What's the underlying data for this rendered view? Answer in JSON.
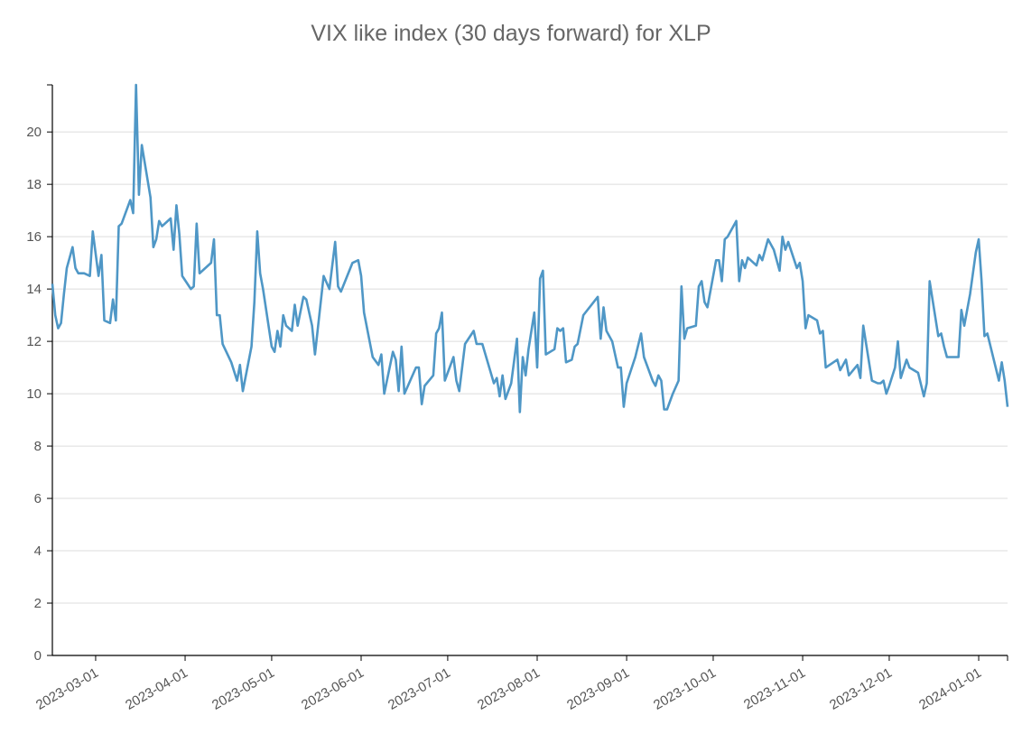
{
  "chart_data": {
    "type": "line",
    "title": "VIX like index (30 days forward) for XLP",
    "x": [
      "2023-02-14",
      "2023-02-15",
      "2023-02-16",
      "2023-02-17",
      "2023-02-18",
      "2023-02-19",
      "2023-02-21",
      "2023-02-22",
      "2023-02-23",
      "2023-02-25",
      "2023-02-27",
      "2023-02-28",
      "2023-03-02",
      "2023-03-03",
      "2023-03-04",
      "2023-03-06",
      "2023-03-07",
      "2023-03-08",
      "2023-03-09",
      "2023-03-10",
      "2023-03-13",
      "2023-03-14",
      "2023-03-15",
      "2023-03-16",
      "2023-03-17",
      "2023-03-20",
      "2023-03-21",
      "2023-03-22",
      "2023-03-23",
      "2023-03-24",
      "2023-03-27",
      "2023-03-28",
      "2023-03-29",
      "2023-03-30",
      "2023-03-31",
      "2023-04-03",
      "2023-04-04",
      "2023-04-05",
      "2023-04-06",
      "2023-04-10",
      "2023-04-11",
      "2023-04-12",
      "2023-04-13",
      "2023-04-14",
      "2023-04-17",
      "2023-04-19",
      "2023-04-20",
      "2023-04-21",
      "2023-04-24",
      "2023-04-25",
      "2023-04-26",
      "2023-04-27",
      "2023-04-28",
      "2023-05-01",
      "2023-05-02",
      "2023-05-03",
      "2023-05-04",
      "2023-05-05",
      "2023-05-06",
      "2023-05-08",
      "2023-05-09",
      "2023-05-10",
      "2023-05-12",
      "2023-05-13",
      "2023-05-15",
      "2023-05-16",
      "2023-05-17",
      "2023-05-19",
      "2023-05-21",
      "2023-05-23",
      "2023-05-24",
      "2023-05-25",
      "2023-05-29",
      "2023-05-31",
      "2023-06-01",
      "2023-06-02",
      "2023-06-05",
      "2023-06-07",
      "2023-06-08",
      "2023-06-09",
      "2023-06-12",
      "2023-06-13",
      "2023-06-14",
      "2023-06-15",
      "2023-06-16",
      "2023-06-20",
      "2023-06-21",
      "2023-06-22",
      "2023-06-23",
      "2023-06-26",
      "2023-06-27",
      "2023-06-28",
      "2023-06-29",
      "2023-06-30",
      "2023-07-03",
      "2023-07-04",
      "2023-07-05",
      "2023-07-07",
      "2023-07-10",
      "2023-07-11",
      "2023-07-13",
      "2023-07-17",
      "2023-07-18",
      "2023-07-19",
      "2023-07-20",
      "2023-07-21",
      "2023-07-23",
      "2023-07-25",
      "2023-07-26",
      "2023-07-27",
      "2023-07-28",
      "2023-07-29",
      "2023-07-31",
      "2023-08-01",
      "2023-08-02",
      "2023-08-03",
      "2023-08-04",
      "2023-08-07",
      "2023-08-08",
      "2023-08-09",
      "2023-08-10",
      "2023-08-11",
      "2023-08-13",
      "2023-08-14",
      "2023-08-15",
      "2023-08-17",
      "2023-08-22",
      "2023-08-23",
      "2023-08-24",
      "2023-08-25",
      "2023-08-27",
      "2023-08-29",
      "2023-08-30",
      "2023-08-31",
      "2023-09-01",
      "2023-09-04",
      "2023-09-06",
      "2023-09-07",
      "2023-09-10",
      "2023-09-11",
      "2023-09-12",
      "2023-09-13",
      "2023-09-14",
      "2023-09-15",
      "2023-09-17",
      "2023-09-19",
      "2023-09-20",
      "2023-09-21",
      "2023-09-22",
      "2023-09-25",
      "2023-09-26",
      "2023-09-27",
      "2023-09-28",
      "2023-09-29",
      "2023-10-02",
      "2023-10-03",
      "2023-10-04",
      "2023-10-05",
      "2023-10-06",
      "2023-10-09",
      "2023-10-10",
      "2023-10-11",
      "2023-10-12",
      "2023-10-13",
      "2023-10-16",
      "2023-10-17",
      "2023-10-18",
      "2023-10-20",
      "2023-10-22",
      "2023-10-24",
      "2023-10-25",
      "2023-10-26",
      "2023-10-27",
      "2023-10-30",
      "2023-10-31",
      "2023-11-01",
      "2023-11-02",
      "2023-11-03",
      "2023-11-06",
      "2023-11-07",
      "2023-11-08",
      "2023-11-09",
      "2023-11-13",
      "2023-11-14",
      "2023-11-15",
      "2023-11-16",
      "2023-11-17",
      "2023-11-20",
      "2023-11-21",
      "2023-11-22",
      "2023-11-25",
      "2023-11-27",
      "2023-11-28",
      "2023-11-29",
      "2023-11-30",
      "2023-12-01",
      "2023-12-03",
      "2023-12-04",
      "2023-12-05",
      "2023-12-07",
      "2023-12-08",
      "2023-12-11",
      "2023-12-13",
      "2023-12-14",
      "2023-12-15",
      "2023-12-18",
      "2023-12-19",
      "2023-12-20",
      "2023-12-21",
      "2023-12-25",
      "2023-12-26",
      "2023-12-27",
      "2023-12-29",
      "2023-12-31",
      "2024-01-01",
      "2024-01-02",
      "2024-01-03",
      "2024-01-04",
      "2024-01-08",
      "2024-01-09",
      "2024-01-10",
      "2024-01-11"
    ],
    "values": [
      14.2,
      13.0,
      12.5,
      12.7,
      13.8,
      14.8,
      15.6,
      14.8,
      14.6,
      14.6,
      14.5,
      16.2,
      14.5,
      15.3,
      12.8,
      12.7,
      13.6,
      12.8,
      16.4,
      16.5,
      17.4,
      16.9,
      21.8,
      17.6,
      19.5,
      17.5,
      15.6,
      15.9,
      16.6,
      16.4,
      16.7,
      15.5,
      17.2,
      16.1,
      14.5,
      14.0,
      14.1,
      16.5,
      14.6,
      15.0,
      15.9,
      13.0,
      13.0,
      11.9,
      11.2,
      10.5,
      11.1,
      10.1,
      11.8,
      13.5,
      16.2,
      14.6,
      14.0,
      11.8,
      11.6,
      12.4,
      11.8,
      13.0,
      12.6,
      12.4,
      13.4,
      12.6,
      13.7,
      13.6,
      12.6,
      11.5,
      12.5,
      14.5,
      14.0,
      15.8,
      14.1,
      13.9,
      15.0,
      15.1,
      14.5,
      13.1,
      11.4,
      11.1,
      11.5,
      10.0,
      11.6,
      11.3,
      10.1,
      11.8,
      10.0,
      11.0,
      11.0,
      9.6,
      10.3,
      10.7,
      12.3,
      12.5,
      13.1,
      10.5,
      11.4,
      10.5,
      10.1,
      11.9,
      12.4,
      11.9,
      11.9,
      10.4,
      10.6,
      9.9,
      10.7,
      9.8,
      10.4,
      12.1,
      9.3,
      11.4,
      10.7,
      11.7,
      13.1,
      11.0,
      14.4,
      14.7,
      11.5,
      11.7,
      12.5,
      12.4,
      12.5,
      11.2,
      11.3,
      11.8,
      11.9,
      13.0,
      13.7,
      12.1,
      13.3,
      12.4,
      12.0,
      11.0,
      11.0,
      9.5,
      10.4,
      11.4,
      12.3,
      11.4,
      10.5,
      10.3,
      10.7,
      10.5,
      9.4,
      9.4,
      10.0,
      10.5,
      14.1,
      12.1,
      12.5,
      12.6,
      14.1,
      14.3,
      13.5,
      13.3,
      15.1,
      15.1,
      14.3,
      15.9,
      16.0,
      16.6,
      14.3,
      15.1,
      14.8,
      15.2,
      14.9,
      15.3,
      15.1,
      15.9,
      15.5,
      14.7,
      16.0,
      15.5,
      15.8,
      14.8,
      15.0,
      14.3,
      12.5,
      13.0,
      12.8,
      12.3,
      12.4,
      11.0,
      11.3,
      10.9,
      11.1,
      11.3,
      10.7,
      11.1,
      10.6,
      12.6,
      10.5,
      10.4,
      10.4,
      10.5,
      10.0,
      10.3,
      11.0,
      12.0,
      10.6,
      11.3,
      11.0,
      10.8,
      9.9,
      10.4,
      14.3,
      12.2,
      12.3,
      11.8,
      11.4,
      11.4,
      13.2,
      12.6,
      13.8,
      15.4,
      15.9,
      14.3,
      12.2,
      12.3,
      10.5,
      11.2,
      10.5,
      9.5
    ],
    "color": "#4f97c6",
    "xlim": [
      "2023-02-14",
      "2024-01-11"
    ],
    "xticks": [
      "2023-03-01",
      "2023-04-01",
      "2023-05-01",
      "2023-06-01",
      "2023-07-01",
      "2023-08-01",
      "2023-09-01",
      "2023-10-01",
      "2023-11-01",
      "2023-12-01",
      "2024-01-01"
    ],
    "ylim": [
      0,
      21.8
    ],
    "yticks": [
      0,
      2,
      4,
      6,
      8,
      10,
      12,
      14,
      16,
      18,
      20
    ],
    "grid": true
  }
}
